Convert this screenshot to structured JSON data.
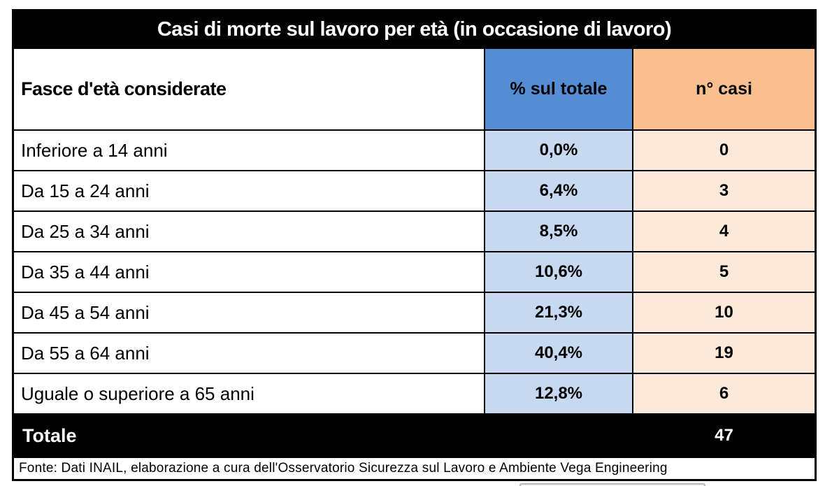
{
  "title": "Casi di morte sul lavoro per età (in occasione di lavoro)",
  "columns": {
    "age": "Fasce d'età considerate",
    "pct": "% sul totale",
    "cases": "n° casi"
  },
  "rows": [
    {
      "label": "Inferiore a 14 anni",
      "pct": "0,0%",
      "cases": "0"
    },
    {
      "label": "Da 15 a 24 anni",
      "pct": "6,4%",
      "cases": "3"
    },
    {
      "label": "Da 25 a 34 anni",
      "pct": "8,5%",
      "cases": "4"
    },
    {
      "label": "Da 35 a 44 anni",
      "pct": "10,6%",
      "cases": "5"
    },
    {
      "label": "Da 45 a 54 anni",
      "pct": "21,3%",
      "cases": "10"
    },
    {
      "label": "Da 55 a 64 anni",
      "pct": "40,4%",
      "cases": "19"
    },
    {
      "label": "Uguale o superiore a 65 anni",
      "pct": "12,8%",
      "cases": "6"
    }
  ],
  "total": {
    "label": "Totale",
    "cases": "47"
  },
  "footer": "Fonte: Dati INAIL, elaborazione a cura dell'Osservatorio Sicurezza sul Lavoro e Ambiente Vega Engineering",
  "colors": {
    "header_pct_bg": "#548DD4",
    "header_cases_bg": "#FABF8F",
    "data_pct_bg": "#C6D9F1",
    "data_cases_bg": "#FDE9D9",
    "title_bg": "#000000",
    "title_text": "#FFFFFF",
    "border": "#000000"
  },
  "chart_data": {
    "type": "table",
    "title": "Casi di morte sul lavoro per età (in occasione di lavoro)",
    "columns": [
      "Fasce d'età considerate",
      "% sul totale",
      "n° casi"
    ],
    "categories": [
      "Inferiore a 14 anni",
      "Da 15 a 24 anni",
      "Da 25 a 34 anni",
      "Da 35 a 44 anni",
      "Da 45 a 54 anni",
      "Da 55 a 64 anni",
      "Uguale o superiore a 65 anni"
    ],
    "series": [
      {
        "name": "% sul totale",
        "values": [
          0.0,
          6.4,
          8.5,
          10.6,
          21.3,
          40.4,
          12.8
        ]
      },
      {
        "name": "n° casi",
        "values": [
          0,
          3,
          4,
          5,
          10,
          19,
          6
        ]
      }
    ],
    "total": {
      "label": "Totale",
      "n_casi": 47
    },
    "source": "Fonte: Dati INAIL, elaborazione a cura dell'Osservatorio Sicurezza sul Lavoro e Ambiente Vega Engineering"
  }
}
